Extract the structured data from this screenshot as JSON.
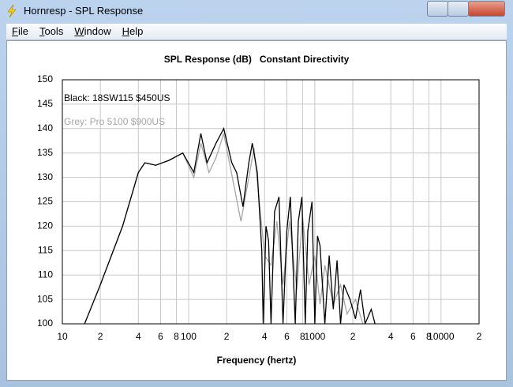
{
  "window": {
    "title": "Hornresp - SPL Response",
    "menu": [
      "File",
      "Tools",
      "Window",
      "Help"
    ]
  },
  "chart_data": {
    "type": "line",
    "title": "SPL Response (dB)   Constant Directivity",
    "x_label": "Frequency (hertz)",
    "xscale": "log",
    "xlim": [
      10,
      20000
    ],
    "ylim": [
      100,
      150
    ],
    "grid": true,
    "xticks": [
      10,
      {
        "value": 20,
        "label": "2"
      },
      {
        "value": 40,
        "label": "4"
      },
      {
        "value": 60,
        "label": "6"
      },
      {
        "value": 80,
        "label": "8"
      },
      100,
      {
        "value": 200,
        "label": "2"
      },
      {
        "value": 400,
        "label": "4"
      },
      {
        "value": 600,
        "label": "6"
      },
      {
        "value": 800,
        "label": "8"
      },
      1000,
      {
        "value": 2000,
        "label": "2"
      },
      {
        "value": 4000,
        "label": "4"
      },
      {
        "value": 6000,
        "label": "6"
      },
      {
        "value": 8000,
        "label": "8"
      },
      10000,
      {
        "value": 20000,
        "label": "2"
      }
    ],
    "yticks": [
      100,
      105,
      110,
      115,
      120,
      125,
      130,
      135,
      140,
      145,
      150
    ],
    "series": [
      {
        "name": "Grey: Pro 5100 $900US",
        "color": "#a6a6a6",
        "x": [
          15,
          20,
          30,
          40,
          45,
          55,
          70,
          90,
          110,
          125,
          145,
          165,
          190,
          230,
          260,
          300,
          330,
          370,
          400,
          450,
          500,
          560,
          630,
          720,
          800,
          900,
          1000,
          1100,
          1200,
          1400,
          1600,
          1800,
          2100,
          2400
        ],
        "values": [
          100,
          108,
          120,
          131,
          133,
          132.5,
          133.5,
          135,
          130,
          137,
          131,
          134,
          139,
          128,
          121,
          130,
          136,
          123,
          114,
          112,
          121,
          108,
          121,
          107,
          122,
          108,
          114,
          104,
          112,
          104,
          108,
          102,
          105,
          100
        ]
      },
      {
        "name": "Black: 18SW115 $450US",
        "color": "#000000",
        "x": [
          15,
          20,
          30,
          40,
          45,
          55,
          70,
          90,
          110,
          125,
          140,
          165,
          190,
          220,
          240,
          270,
          300,
          320,
          350,
          380,
          390,
          410,
          430,
          450,
          480,
          520,
          560,
          600,
          640,
          700,
          740,
          790,
          840,
          880,
          950,
          1000,
          1050,
          1100,
          1200,
          1300,
          1400,
          1500,
          1600,
          1700,
          1900,
          2100,
          2300,
          2500,
          2800,
          3000
        ],
        "values": [
          100,
          108,
          120,
          131,
          133,
          132.5,
          133.5,
          135,
          131,
          139,
          133,
          137,
          140,
          133,
          131,
          124,
          133,
          137,
          131,
          115,
          100,
          120,
          117,
          100,
          123,
          126,
          100,
          119,
          126,
          100,
          121,
          126,
          100,
          119,
          125,
          100,
          118,
          116,
          100,
          114,
          103,
          113,
          100,
          108,
          105,
          101,
          107,
          100,
          103,
          100
        ]
      }
    ]
  }
}
